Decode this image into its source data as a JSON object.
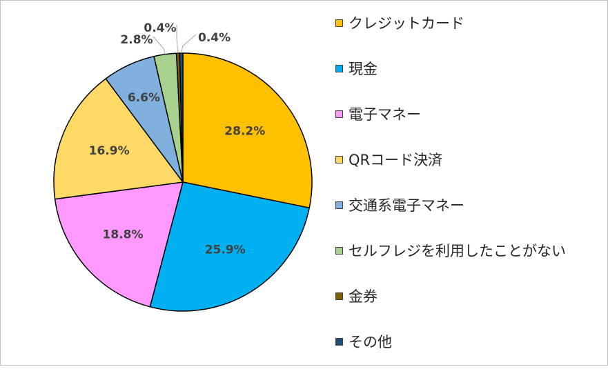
{
  "chart_data": {
    "type": "pie",
    "categories": [
      "クレジットカード",
      "現金",
      "電子マネー",
      "QRコード決済",
      "交通系電子マネー",
      "セルフレジを利用したことがない",
      "金券",
      "その他"
    ],
    "values": [
      28.2,
      25.9,
      18.8,
      16.9,
      6.6,
      2.8,
      0.4,
      0.4
    ],
    "data_labels": [
      "28.2%",
      "25.9%",
      "18.8%",
      "16.9%",
      "6.6%",
      "2.8%",
      "0.4%",
      "0.4%"
    ],
    "colors": [
      "#FFC000",
      "#00B0F0",
      "#FF99FF",
      "#FFD966",
      "#7FB0DE",
      "#A9D18E",
      "#7F6000",
      "#1F4E79"
    ],
    "legend_position": "right",
    "start_angle": "12 o'clock, clockwise"
  }
}
